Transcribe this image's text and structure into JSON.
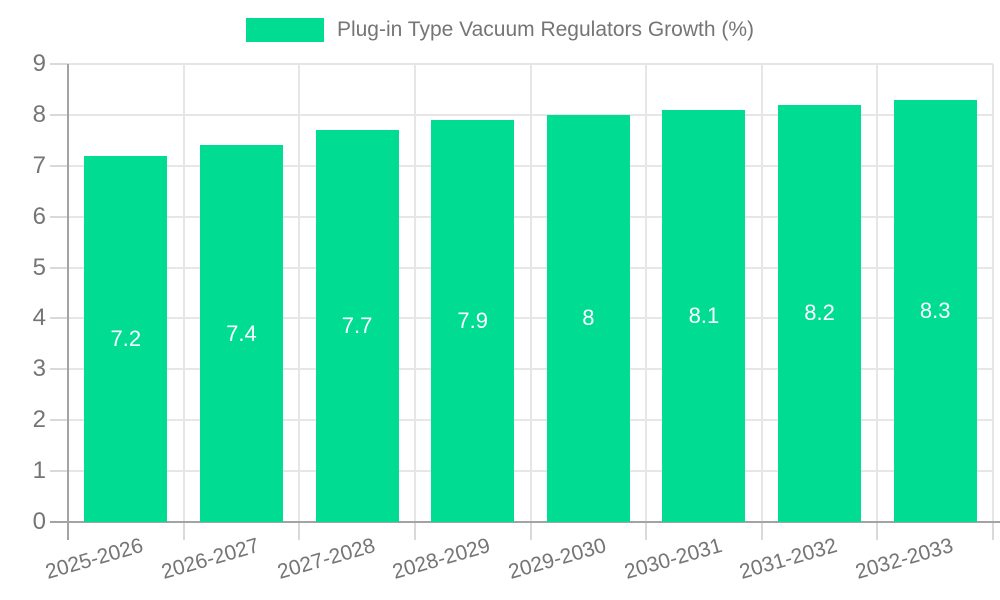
{
  "legend": {
    "label": "Plug-in Type Vacuum Regulators Growth (%)"
  },
  "colors": {
    "bar": "#00DC91",
    "grid": "#e6e6e6",
    "tick": "#d9d9d9",
    "axis": "#a3a3a3",
    "text": "#757575",
    "bar_label": "#ffffff",
    "background": "#ffffff"
  },
  "chart_data": {
    "type": "bar",
    "title": "Plug-in Type Vacuum Regulators Growth (%)",
    "categories": [
      "2025-2026",
      "2026-2027",
      "2027-2028",
      "2028-2029",
      "2029-2030",
      "2030-2031",
      "2031-2032",
      "2032-2033"
    ],
    "values": [
      7.2,
      7.4,
      7.7,
      7.9,
      8,
      8.1,
      8.2,
      8.3
    ],
    "value_labels": [
      "7.2",
      "7.4",
      "7.7",
      "7.9",
      "8",
      "8.1",
      "8.2",
      "8.3"
    ],
    "xlabel": "",
    "ylabel": "",
    "ylim": [
      0,
      9
    ],
    "y_ticks": [
      0,
      1,
      2,
      3,
      4,
      5,
      6,
      7,
      8,
      9
    ],
    "grid": true,
    "legend_position": "top-center"
  }
}
